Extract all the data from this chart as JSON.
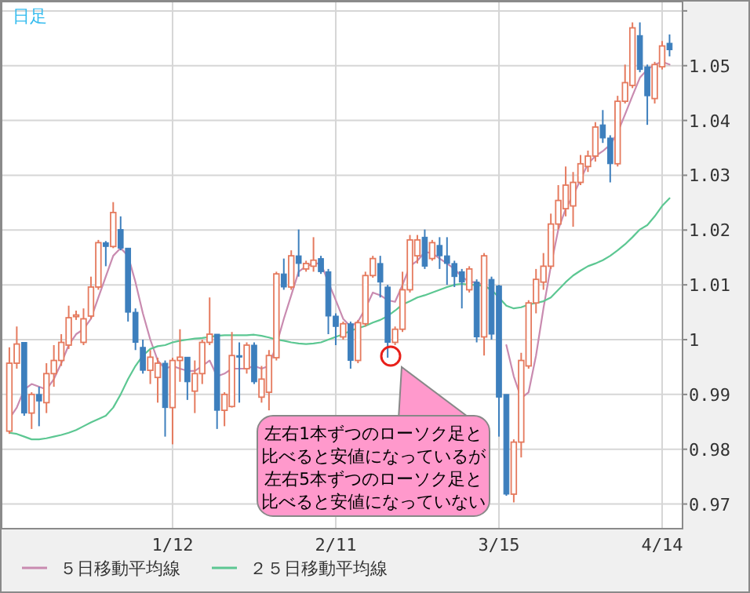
{
  "chart_data": {
    "type": "candlestick",
    "title": "日足",
    "categories": [
      null,
      null,
      null,
      null,
      null,
      null,
      null,
      null,
      null,
      null,
      null,
      null,
      null,
      null,
      null,
      null,
      null,
      null,
      null,
      null,
      null,
      null,
      "1/12",
      null,
      null,
      null,
      null,
      null,
      null,
      null,
      null,
      null,
      null,
      null,
      null,
      null,
      null,
      null,
      null,
      null,
      null,
      null,
      null,
      null,
      "2/11",
      null,
      null,
      null,
      null,
      null,
      null,
      null,
      null,
      null,
      null,
      null,
      null,
      null,
      null,
      null,
      null,
      null,
      null,
      null,
      null,
      null,
      "3/15",
      null,
      null,
      null,
      null,
      null,
      null,
      null,
      null,
      null,
      null,
      null,
      null,
      null,
      null,
      null,
      null,
      null,
      null,
      null,
      null,
      null,
      "4/14",
      null
    ],
    "ohlc": [
      [
        0.9833,
        0.9986,
        0.9828,
        0.9957
      ],
      [
        0.9957,
        1.0024,
        0.9947,
        0.9992
      ],
      [
        0.9995,
        0.9995,
        0.9861,
        0.9866
      ],
      [
        0.9866,
        0.9904,
        0.9837,
        0.99
      ],
      [
        0.99,
        0.9914,
        0.9842,
        0.9888
      ],
      [
        0.9885,
        0.9957,
        0.9866,
        0.9938
      ],
      [
        0.9938,
        0.999,
        0.9914,
        0.9962
      ],
      [
        0.9962,
        1.001,
        0.9952,
        0.9995
      ],
      [
        0.999,
        1.0062,
        0.9983,
        1.004
      ],
      [
        1.0042,
        1.0053,
        1.0036,
        1.0045
      ],
      [
        0.9995,
        1.0057,
        0.999,
        1.0038
      ],
      [
        1.0043,
        1.0115,
        1.0038,
        1.0096
      ],
      [
        1.0096,
        1.0182,
        1.0091,
        1.0177
      ],
      [
        1.0177,
        1.018,
        1.0134,
        1.017
      ],
      [
        1.017,
        1.0251,
        1.0167,
        1.0232
      ],
      [
        1.0201,
        1.0225,
        1.0163,
        1.0167
      ],
      [
        1.0167,
        1.0167,
        1.0033,
        1.005
      ],
      [
        1.005,
        1.0057,
        0.9981,
        0.9995
      ],
      [
        0.9986,
        1.0,
        0.9938,
        0.9944
      ],
      [
        0.9944,
        0.9981,
        0.9919,
        0.9968
      ],
      [
        0.9931,
        0.9967,
        0.9885,
        0.9957
      ],
      [
        0.9957,
        0.9962,
        0.9823,
        0.9876
      ],
      [
        0.9876,
        0.9967,
        0.9809,
        0.9962
      ],
      [
        0.9962,
        1.0019,
        0.9923,
        0.9968
      ],
      [
        0.9968,
        0.9968,
        0.989,
        0.9923
      ],
      [
        0.9906,
        0.9962,
        0.9866,
        0.9938
      ],
      [
        0.9938,
        1.0,
        0.9919,
        0.9995
      ],
      [
        0.9995,
        1.0077,
        0.999,
        1.001
      ],
      [
        1.001,
        1.001,
        0.9837,
        0.9871
      ],
      [
        0.9871,
        0.9904,
        0.9842,
        0.99
      ],
      [
        0.9878,
        1.0014,
        0.9876,
        0.9971
      ],
      [
        0.9971,
        0.9995,
        0.9885,
        0.9968
      ],
      [
        0.9947,
        0.9995,
        0.9938,
        0.999
      ],
      [
        0.999,
        0.9995,
        0.9919,
        0.9923
      ],
      [
        0.9895,
        0.9952,
        0.9885,
        0.9928
      ],
      [
        0.9904,
        0.9981,
        0.9871,
        0.9971
      ],
      [
        0.9967,
        1.0124,
        0.9962,
        1.012
      ],
      [
        1.012,
        1.0148,
        1.0091,
        1.0096
      ],
      [
        1.0096,
        1.0163,
        1.0091,
        1.0153
      ],
      [
        1.0153,
        1.0201,
        1.0115,
        1.0139
      ],
      [
        1.0129,
        1.0144,
        1.0124,
        1.0139
      ],
      [
        1.0134,
        1.0187,
        1.0124,
        1.0145
      ],
      [
        1.0148,
        1.0153,
        1.012,
        1.0124
      ],
      [
        1.0124,
        1.0129,
        1.001,
        1.0043
      ],
      [
        1.0043,
        1.0048,
        0.999,
        1.0024
      ],
      [
        1.0005,
        1.0033,
        1.0,
        1.0029
      ],
      [
        1.0029,
        1.0033,
        0.9947,
        0.9962
      ],
      [
        0.9962,
        1.0036,
        0.9957,
        1.0031
      ],
      [
        1.0029,
        1.0124,
        1.0024,
        1.0117
      ],
      [
        1.0117,
        1.0153,
        1.0113,
        1.0148
      ],
      [
        1.0139,
        1.0153,
        1.0077,
        1.0105
      ],
      [
        1.0096,
        1.01,
        0.9967,
        0.9995
      ],
      [
        0.9995,
        1.0024,
        0.999,
        1.0019
      ],
      [
        1.0019,
        1.0124,
        1.0014,
        1.0091
      ],
      [
        1.0091,
        1.0191,
        1.0086,
        1.0182
      ],
      [
        1.0153,
        1.0191,
        1.0139,
        1.0182
      ],
      [
        1.0187,
        1.0201,
        1.0129,
        1.0134
      ],
      [
        1.0148,
        1.0182,
        1.0144,
        1.0177
      ],
      [
        1.0172,
        1.0187,
        1.0129,
        1.0153
      ],
      [
        1.0153,
        1.0187,
        1.01,
        1.0139
      ],
      [
        1.0139,
        1.0144,
        1.0096,
        1.0115
      ],
      [
        1.0124,
        1.0129,
        1.0057,
        1.0105
      ],
      [
        1.0091,
        1.0134,
        1.0086,
        1.0129
      ],
      [
        1.0105,
        1.011,
        0.9995,
        1.0005
      ],
      [
        1.0005,
        1.0158,
        0.9971,
        1.0153
      ],
      [
        1.011,
        1.0115,
        1.0,
        1.001
      ],
      [
        1.0098,
        1.01,
        0.9823,
        0.9895
      ],
      [
        0.99,
        0.99,
        0.9715,
        0.9718
      ],
      [
        0.9718,
        0.9818,
        0.9703,
        0.9813
      ],
      [
        0.9813,
        0.9976,
        0.9785,
        0.9962
      ],
      [
        0.9952,
        1.0072,
        0.9947,
        1.0067
      ],
      [
        1.0067,
        1.0129,
        1.0048,
        1.011
      ],
      [
        1.0105,
        1.0158,
        1.0091,
        1.0134
      ],
      [
        1.0134,
        1.023,
        1.0129,
        1.0211
      ],
      [
        1.0211,
        1.0282,
        1.0201,
        1.0254
      ],
      [
        1.0239,
        1.0316,
        1.0225,
        1.0282
      ],
      [
        1.0244,
        1.0306,
        1.0206,
        1.0287
      ],
      [
        1.0287,
        1.0337,
        1.0282,
        1.0321
      ],
      [
        1.0316,
        1.0345,
        1.0306,
        1.0335
      ],
      [
        1.0335,
        1.0397,
        1.0325,
        1.0388
      ],
      [
        1.0392,
        1.0419,
        1.0359,
        1.0368
      ],
      [
        1.0368,
        1.0373,
        1.0287,
        1.0321
      ],
      [
        1.0321,
        1.0445,
        1.0316,
        1.0435
      ],
      [
        1.0435,
        1.0502,
        1.0431,
        1.0469
      ],
      [
        1.0464,
        1.0579,
        1.0459,
        1.0569
      ],
      [
        1.0555,
        1.0579,
        1.0488,
        1.0493
      ],
      [
        1.0498,
        1.0502,
        1.0392,
        1.0445
      ],
      [
        1.044,
        1.0507,
        1.0431,
        1.0502
      ],
      [
        1.0498,
        1.0545,
        1.0493,
        1.0536
      ],
      [
        1.0541,
        1.0557,
        1.0517,
        1.0529
      ]
    ],
    "colors": [
      "#e57a5e",
      "#e57a5e",
      "#3d7fbd",
      "#e57a5e",
      "#3d7fbd",
      "#e57a5e",
      "#e57a5e",
      "#e57a5e",
      "#e57a5e",
      "#e57a5e",
      "#e57a5e",
      "#e57a5e",
      "#e57a5e",
      "#3d7fbd",
      "#e57a5e",
      "#3d7fbd",
      "#3d7fbd",
      "#3d7fbd",
      "#3d7fbd",
      "#e57a5e",
      "#e57a5e",
      "#3d7fbd",
      "#e57a5e",
      "#e57a5e",
      "#3d7fbd",
      "#e57a5e",
      "#e57a5e",
      "#e57a5e",
      "#3d7fbd",
      "#e57a5e",
      "#e57a5e",
      "#3d7fbd",
      "#e57a5e",
      "#3d7fbd",
      "#e57a5e",
      "#e57a5e",
      "#e57a5e",
      "#3d7fbd",
      "#e57a5e",
      "#3d7fbd",
      "#e57a5e",
      "#e57a5e",
      "#3d7fbd",
      "#3d7fbd",
      "#3d7fbd",
      "#e57a5e",
      "#3d7fbd",
      "#e57a5e",
      "#e57a5e",
      "#e57a5e",
      "#3d7fbd",
      "#3d7fbd",
      "#e57a5e",
      "#e57a5e",
      "#e57a5e",
      "#e57a5e",
      "#3d7fbd",
      "#e57a5e",
      "#3d7fbd",
      "#3d7fbd",
      "#3d7fbd",
      "#3d7fbd",
      "#e57a5e",
      "#3d7fbd",
      "#e57a5e",
      "#3d7fbd",
      "#3d7fbd",
      "#3d7fbd",
      "#e57a5e",
      "#e57a5e",
      "#e57a5e",
      "#e57a5e",
      "#e57a5e",
      "#e57a5e",
      "#e57a5e",
      "#e57a5e",
      "#e57a5e",
      "#e57a5e",
      "#e57a5e",
      "#e57a5e",
      "#3d7fbd",
      "#3d7fbd",
      "#e57a5e",
      "#e57a5e",
      "#e57a5e",
      "#3d7fbd",
      "#3d7fbd",
      "#e57a5e",
      "#e57a5e",
      "#3d7fbd"
    ],
    "series": [
      {
        "name": "５日移動平均線",
        "type": "line",
        "color": "#c98bb0",
        "values": [
          0.9856,
          0.9876,
          0.9909,
          0.9919,
          0.9914,
          0.9909,
          0.9928,
          0.9957,
          0.999,
          1.001,
          1.0019,
          1.0038,
          1.0077,
          1.0115,
          1.0153,
          1.0167,
          1.0153,
          1.0105,
          1.0048,
          1.0,
          0.9962,
          0.9947,
          0.9952,
          0.9947,
          0.9943,
          0.9943,
          0.9952,
          0.9962,
          0.9933,
          0.9938,
          0.9947,
          0.9947,
          0.9947,
          0.9952,
          0.9947,
          0.9952,
          0.999,
          1.0038,
          1.0081,
          1.0124,
          1.0134,
          1.0139,
          1.0139,
          1.0105,
          1.0072,
          1.0038,
          1.0024,
          1.0033,
          1.0057,
          1.0086,
          1.0081,
          1.0072,
          1.0069,
          1.01,
          1.0134,
          1.0144,
          1.016,
          1.0158,
          1.0148,
          1.0139,
          1.0129,
          1.0115,
          1.0105,
          1.0105,
          1.0098,
          1.0091,
          null,
          0.999,
          0.9933,
          0.9893,
          0.9904,
          0.9971,
          1.0057,
          1.0134,
          1.0201,
          1.0239,
          1.0263,
          1.0292,
          1.0321,
          1.0335,
          1.0344,
          1.0356,
          1.0378,
          1.0411,
          1.0445,
          1.0478,
          1.0493,
          1.0502,
          1.0507,
          1.0502
        ]
      },
      {
        "name": "２５日移動平均線",
        "type": "line",
        "color": "#5cc792",
        "values": [
          0.983,
          0.9828,
          0.9823,
          0.9818,
          0.9818,
          0.982,
          0.9823,
          0.9826,
          0.983,
          0.9835,
          0.9842,
          0.9849,
          0.9855,
          0.9861,
          0.9876,
          0.99,
          0.9928,
          0.9952,
          0.9971,
          0.9983,
          0.9988,
          0.999,
          0.9995,
          0.9998,
          1.0,
          1.0002,
          1.0003,
          1.0005,
          1.0007,
          1.0008,
          1.0008,
          1.0008,
          1.0008,
          1.0009,
          1.0007,
          1.0004,
          1.0,
          0.9998,
          0.9995,
          0.9993,
          0.9992,
          0.9993,
          0.9995,
          1.0,
          1.0005,
          1.001,
          1.0016,
          1.0021,
          1.0025,
          1.0031,
          1.0036,
          1.0043,
          1.0053,
          1.0064,
          1.007,
          1.0077,
          1.0081,
          1.0086,
          1.0091,
          1.0096,
          1.01,
          1.0102,
          1.01,
          1.01,
          1.0098,
          1.0091,
          1.0077,
          1.0062,
          1.0057,
          1.0059,
          1.0064,
          1.0067,
          1.007,
          1.0077,
          1.0091,
          1.0105,
          1.0117,
          1.0126,
          1.0134,
          1.0139,
          1.0145,
          1.0153,
          1.0163,
          1.0174,
          1.0187,
          1.0201,
          1.0209,
          1.0225,
          1.0244,
          1.0258
        ]
      }
    ],
    "ylim": [
      0.9655,
      1.0617
    ],
    "yticks": [
      0.97,
      0.98,
      0.99,
      1,
      1.01,
      1.02,
      1.03,
      1.04,
      1.05,
      {
        "value": 1.06,
        "label": null
      }
    ],
    "grid": true,
    "legend": "bottom",
    "annotations": [
      "左右1本ずつのローソク足と",
      "比べると安値になっているが",
      "左右5本ずつのローソク足と",
      "比べると安値になっていない"
    ]
  }
}
